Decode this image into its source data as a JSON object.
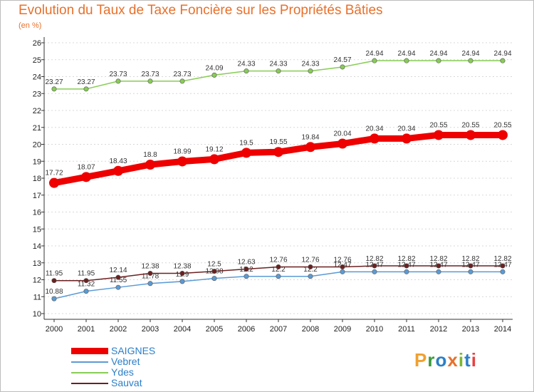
{
  "title": "Evolution du Taux de Taxe Foncière sur les Propriétés Bâties",
  "unit": "(en %)",
  "logo": {
    "text": "Proxiti",
    "colors": [
      "#f0a030",
      "#3a9a3a",
      "#2b7fc8",
      "#e8702a",
      "#7ab830",
      "#2b7fc8",
      "#e84040"
    ]
  },
  "chart_data": {
    "type": "line",
    "title": "Evolution du Taux de Taxe Foncière sur les Propriétés Bâties",
    "ylabel": "(en %)",
    "xlabel": "",
    "ylim": [
      10,
      26
    ],
    "yticks": [
      10,
      11,
      12,
      13,
      14,
      15,
      16,
      17,
      18,
      19,
      20,
      21,
      22,
      23,
      24,
      25,
      26
    ],
    "grid": "horizontal dashed",
    "categories": [
      "2000",
      "2001",
      "2002",
      "2003",
      "2004",
      "2005",
      "2006",
      "2007",
      "2008",
      "2009",
      "2010",
      "2011",
      "2012",
      "2013",
      "2014"
    ],
    "series": [
      {
        "name": "SAIGNES",
        "color": "#ee0000",
        "highlight": true,
        "values": [
          17.72,
          18.07,
          18.43,
          18.8,
          18.99,
          19.12,
          19.5,
          19.55,
          19.84,
          20.04,
          20.34,
          20.34,
          20.55,
          20.55,
          20.55
        ],
        "labels": [
          "17.72",
          "18.07",
          "18.43",
          "18.8",
          "18.99",
          "19.12",
          "19.5",
          "19.55",
          "19.84",
          "20.04",
          "20.34",
          "20.34",
          "20.55",
          "20.55",
          "20.55"
        ]
      },
      {
        "name": "Vebret",
        "color": "#5b9bd5",
        "values": [
          10.88,
          11.32,
          11.55,
          11.78,
          11.9,
          12.08,
          12.2,
          12.2,
          12.2,
          12.47,
          12.47,
          12.47,
          12.47,
          12.47,
          12.47
        ],
        "labels": [
          "10.88",
          "11.32",
          "11.55",
          "11.78",
          "11.9",
          "12.08",
          "12.2",
          "12.2",
          "12.2",
          "12.47",
          "12.47",
          "12.47",
          "12.47",
          "12.47",
          "12.47"
        ]
      },
      {
        "name": "Ydes",
        "color": "#88cc55",
        "values": [
          23.27,
          23.27,
          23.73,
          23.73,
          23.73,
          24.09,
          24.33,
          24.33,
          24.33,
          24.57,
          24.94,
          24.94,
          24.94,
          24.94,
          24.94
        ],
        "labels": [
          "23.27",
          "23.27",
          "23.73",
          "23.73",
          "23.73",
          "24.09",
          "24.33",
          "24.33",
          "24.33",
          "24.57",
          "24.94",
          "24.94",
          "24.94",
          "24.94",
          "24.94"
        ]
      },
      {
        "name": "Sauvat",
        "color": "#6b2020",
        "values": [
          11.95,
          11.95,
          12.14,
          12.38,
          12.38,
          12.5,
          12.63,
          12.76,
          12.76,
          12.76,
          12.82,
          12.82,
          12.82,
          12.82,
          12.82
        ],
        "labels": [
          "11.95",
          "11.95",
          "12.14",
          "12.38",
          "12.38",
          "12.5",
          "12.63",
          "12.76",
          "12.76",
          "12.76",
          "12.82",
          "12.82",
          "12.82",
          "12.82",
          "12.82"
        ]
      }
    ]
  }
}
